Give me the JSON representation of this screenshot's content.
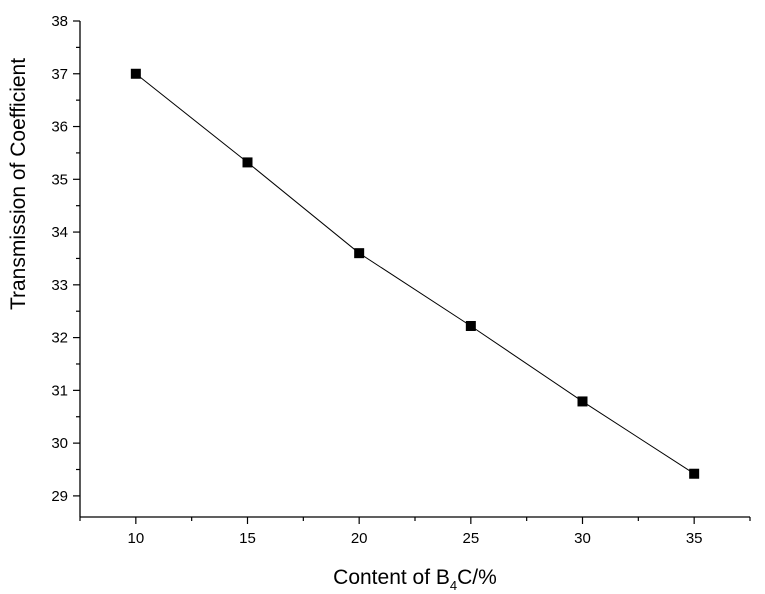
{
  "chart_data": {
    "type": "line",
    "xlabel": "Content of B",
    "xlabel_sub": "4",
    "xlabel_tail": "C/%",
    "ylabel": "Transmission of Coefficient",
    "xlim": [
      7.5,
      37.5
    ],
    "ylim": [
      28.6,
      38
    ],
    "x_ticks": [
      10,
      15,
      20,
      25,
      30,
      35
    ],
    "y_ticks": [
      29,
      30,
      31,
      32,
      33,
      34,
      35,
      36,
      37,
      38
    ],
    "marker": "square",
    "grid": false,
    "series": [
      {
        "x": [
          10,
          15,
          20,
          25,
          30,
          35
        ],
        "y": [
          37.0,
          35.32,
          33.6,
          32.22,
          30.79,
          29.42
        ]
      }
    ]
  }
}
